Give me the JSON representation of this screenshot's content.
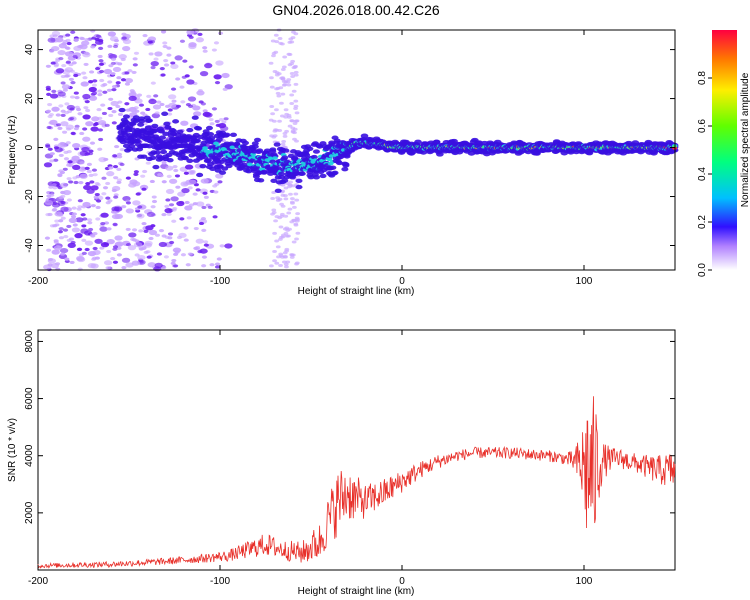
{
  "title": "GN04.2026.018.00.42.C26",
  "colors": {
    "snr_line": "#e8302a",
    "frame": "#000000",
    "background": "#ffffff"
  },
  "chart_data": [
    {
      "type": "heatmap",
      "name": "spectrogram",
      "xlabel": "Height of straight line (km)",
      "ylabel": "Frequency (Hz)",
      "xlim": [
        -200,
        150
      ],
      "ylim": [
        -50,
        48
      ],
      "xticks": [
        -200,
        -100,
        0,
        100
      ],
      "yticks": [
        -40,
        -20,
        0,
        20,
        40
      ],
      "colorbar": {
        "label": "Normalized spectral amplitude",
        "range": [
          0,
          1
        ],
        "ticks": [
          "0.0",
          "0.2",
          "0.4",
          "0.6",
          "0.8"
        ],
        "colormap": "rainbow (white-violet-blue-cyan-green-yellow-red)"
      },
      "features": {
        "broadband_noise_height_range": [
          -200,
          -100
        ],
        "noise_column_height_range": [
          -72,
          -57
        ],
        "ridge_frequency_points": [
          [
            -150,
            5
          ],
          [
            -140,
            3
          ],
          [
            -130,
            2
          ],
          [
            -120,
            1
          ],
          [
            -110,
            0
          ],
          [
            -100,
            -1
          ],
          [
            -90,
            -3
          ],
          [
            -80,
            -5
          ],
          [
            -70,
            -7
          ],
          [
            -60,
            -8
          ],
          [
            -50,
            -6
          ],
          [
            -40,
            -4
          ],
          [
            -30,
            -1
          ],
          [
            -25,
            2
          ],
          [
            -20,
            2
          ],
          [
            -10,
            1
          ],
          [
            0,
            0
          ],
          [
            20,
            0
          ],
          [
            40,
            0
          ],
          [
            60,
            0
          ],
          [
            80,
            0
          ],
          [
            100,
            0
          ],
          [
            120,
            0
          ],
          [
            140,
            0
          ],
          [
            150,
            0
          ]
        ]
      }
    },
    {
      "type": "line",
      "name": "snr",
      "xlabel": "Height of straight line (km)",
      "ylabel": "SNR (10 * v/v)",
      "xlim": [
        -200,
        150
      ],
      "ylim": [
        0,
        8400
      ],
      "xticks": [
        -200,
        -100,
        0,
        100
      ],
      "yticks": [
        2000,
        4000,
        6000,
        8000
      ],
      "series": [
        {
          "name": "SNR",
          "envelope_x": [
            -200,
            -160,
            -130,
            -110,
            -95,
            -85,
            -75,
            -65,
            -55,
            -45,
            -40,
            -35,
            -30,
            -25,
            -20,
            -10,
            0,
            10,
            20,
            30,
            40,
            60,
            80,
            90,
            95,
            100,
            102,
            104,
            106,
            108,
            110,
            115,
            120,
            130,
            140,
            150
          ],
          "envelope_mean": [
            150,
            200,
            300,
            400,
            500,
            700,
            900,
            700,
            600,
            1000,
            1800,
            2400,
            2700,
            2500,
            2400,
            2700,
            3100,
            3500,
            3800,
            4000,
            4100,
            4100,
            4000,
            3900,
            3800,
            3600,
            3500,
            3400,
            3500,
            3700,
            3800,
            3900,
            3900,
            3700,
            3500,
            3500
          ],
          "envelope_noise": [
            80,
            100,
            120,
            150,
            200,
            300,
            400,
            350,
            400,
            700,
            900,
            1200,
            1000,
            800,
            600,
            500,
            400,
            300,
            250,
            200,
            200,
            200,
            200,
            220,
            400,
            1800,
            3000,
            2500,
            2800,
            1500,
            700,
            400,
            350,
            350,
            500,
            700
          ]
        }
      ]
    }
  ]
}
